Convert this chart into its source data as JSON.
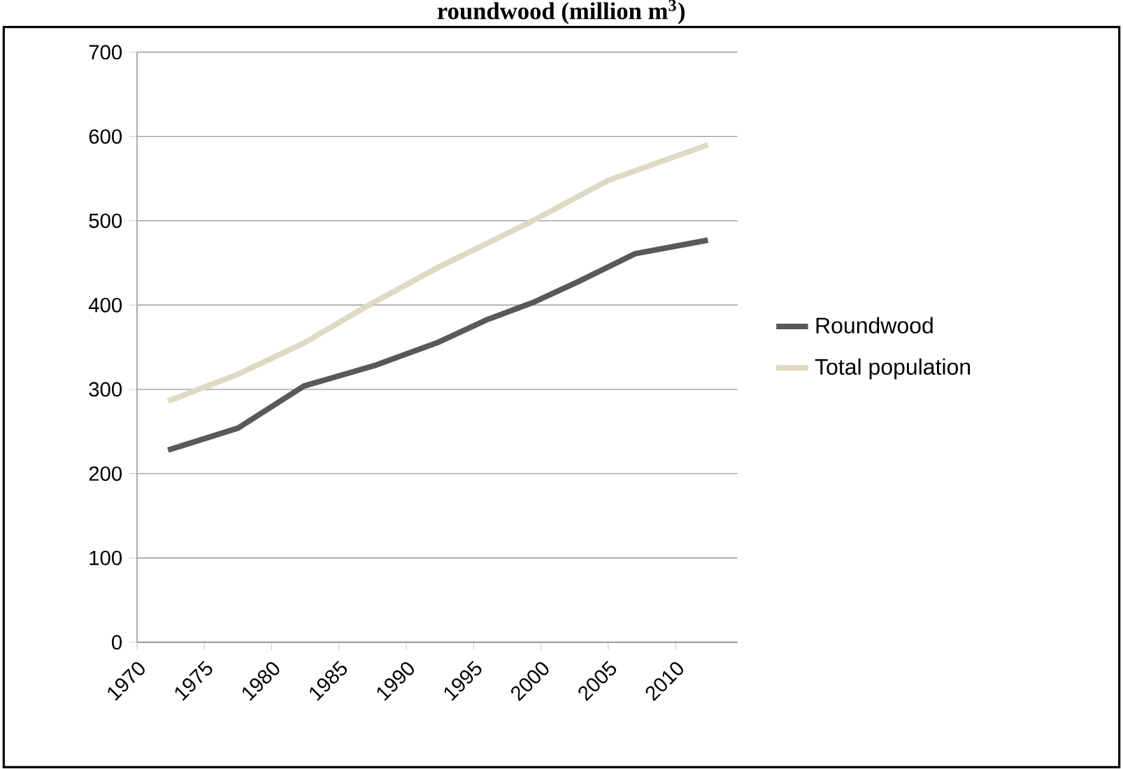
{
  "chart_data": {
    "type": "line",
    "title": "roundwood (million m$^{3}$)",
    "xlim": [
      1970,
      2014.6
    ],
    "xticks": [
      1970,
      1975,
      1980,
      1985,
      1990,
      1995,
      2000,
      2005,
      2010
    ],
    "ylim": [
      0,
      700
    ],
    "yticks": [
      0,
      100,
      200,
      300,
      400,
      500,
      600,
      700
    ],
    "grid": "y",
    "legend": "right",
    "line_style": "solid",
    "marker": "none",
    "series": [
      {
        "name": "Roundwood",
        "color": "#595959",
        "x": [
          1972.3,
          1977.5,
          1982.4,
          1987.6,
          1992.4,
          1995.9,
          1999.4,
          2002.8,
          2007.0,
          2012.4
        ],
        "values": [
          228,
          254,
          304,
          328,
          356,
          382,
          403,
          428,
          461,
          477
        ]
      },
      {
        "name": "Total population",
        "color": "#ddd9c3",
        "x": [
          1972.3,
          1977.5,
          1982.4,
          1987.0,
          1992.4,
          1999.4,
          2005.0,
          2012.4
        ],
        "values": [
          286,
          318,
          355,
          398,
          445,
          500,
          548,
          590
        ]
      }
    ]
  }
}
